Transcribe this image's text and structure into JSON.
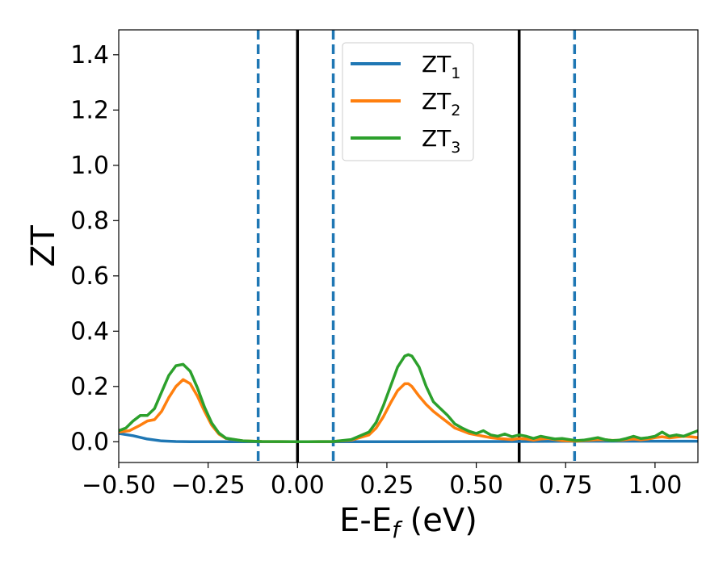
{
  "chart_data": {
    "type": "line",
    "xlabel": "E-E",
    "xlabel_sub": "f",
    "xlabel_unit": " (eV)",
    "ylabel": "ZT",
    "xlim": [
      -0.5,
      1.12
    ],
    "ylim": [
      -0.075,
      1.49
    ],
    "xticks": [
      -0.5,
      -0.25,
      0.0,
      0.25,
      0.5,
      0.75,
      1.0
    ],
    "xtick_labels": [
      "−0.50",
      "−0.25",
      "0.00",
      "0.25",
      "0.50",
      "0.75",
      "1.00"
    ],
    "yticks": [
      0.0,
      0.2,
      0.4,
      0.6,
      0.8,
      1.0,
      1.2,
      1.4
    ],
    "ytick_labels": [
      "0.0",
      "0.2",
      "0.4",
      "0.6",
      "0.8",
      "1.0",
      "1.2",
      "1.4"
    ],
    "grid": false,
    "legend_position": "top-center",
    "vlines_solid": [
      0.0,
      0.62
    ],
    "vlines_dashed": [
      -0.11,
      0.1,
      0.775
    ],
    "vline_solid_color": "#000000",
    "vline_dashed_color": "#1f77b4",
    "series": [
      {
        "name": "ZT",
        "name_sub": "1",
        "color": "#1f77b4",
        "x": [
          -0.5,
          -0.46,
          -0.42,
          -0.38,
          -0.34,
          -0.3,
          0.0,
          0.3,
          0.6,
          0.8,
          1.0,
          1.12
        ],
        "y": [
          0.03,
          0.022,
          0.01,
          0.003,
          0.001,
          0.0,
          0.0,
          0.0,
          0.001,
          0.002,
          0.002,
          0.002
        ]
      },
      {
        "name": "ZT",
        "name_sub": "2",
        "color": "#ff7f0e",
        "x": [
          -0.5,
          -0.47,
          -0.44,
          -0.42,
          -0.4,
          -0.38,
          -0.36,
          -0.34,
          -0.32,
          -0.3,
          -0.28,
          -0.26,
          -0.24,
          -0.22,
          -0.2,
          -0.15,
          -0.1,
          0.0,
          0.1,
          0.15,
          0.2,
          0.22,
          0.24,
          0.26,
          0.28,
          0.3,
          0.31,
          0.32,
          0.34,
          0.36,
          0.38,
          0.4,
          0.42,
          0.44,
          0.46,
          0.48,
          0.5,
          0.52,
          0.54,
          0.56,
          0.58,
          0.6,
          0.62,
          0.64,
          0.66,
          0.68,
          0.7,
          0.72,
          0.74,
          0.76,
          0.78,
          0.8,
          0.82,
          0.84,
          0.86,
          0.88,
          0.9,
          0.92,
          0.94,
          0.96,
          0.98,
          1.0,
          1.02,
          1.04,
          1.06,
          1.08,
          1.1,
          1.12
        ],
        "y": [
          0.035,
          0.04,
          0.06,
          0.075,
          0.08,
          0.11,
          0.16,
          0.2,
          0.225,
          0.21,
          0.165,
          0.11,
          0.06,
          0.028,
          0.012,
          0.003,
          0.001,
          0.0,
          0.001,
          0.006,
          0.025,
          0.05,
          0.09,
          0.14,
          0.185,
          0.21,
          0.21,
          0.2,
          0.165,
          0.135,
          0.11,
          0.09,
          0.07,
          0.05,
          0.04,
          0.03,
          0.025,
          0.02,
          0.015,
          0.012,
          0.01,
          0.008,
          0.012,
          0.01,
          0.006,
          0.01,
          0.012,
          0.008,
          0.004,
          0.003,
          0.002,
          0.004,
          0.006,
          0.008,
          0.007,
          0.005,
          0.005,
          0.008,
          0.01,
          0.007,
          0.01,
          0.015,
          0.018,
          0.014,
          0.017,
          0.02,
          0.018,
          0.015
        ]
      },
      {
        "name": "ZT",
        "name_sub": "3",
        "color": "#2ca02c",
        "x": [
          -0.5,
          -0.48,
          -0.46,
          -0.44,
          -0.42,
          -0.4,
          -0.38,
          -0.36,
          -0.34,
          -0.32,
          -0.3,
          -0.28,
          -0.26,
          -0.24,
          -0.22,
          -0.2,
          -0.15,
          -0.1,
          0.0,
          0.1,
          0.15,
          0.2,
          0.22,
          0.24,
          0.26,
          0.28,
          0.3,
          0.31,
          0.32,
          0.34,
          0.36,
          0.38,
          0.4,
          0.42,
          0.44,
          0.46,
          0.48,
          0.5,
          0.52,
          0.54,
          0.56,
          0.58,
          0.6,
          0.62,
          0.64,
          0.66,
          0.68,
          0.7,
          0.72,
          0.74,
          0.76,
          0.78,
          0.8,
          0.82,
          0.84,
          0.86,
          0.88,
          0.9,
          0.92,
          0.94,
          0.96,
          0.98,
          1.0,
          1.02,
          1.04,
          1.06,
          1.08,
          1.1,
          1.12
        ],
        "y": [
          0.04,
          0.05,
          0.075,
          0.095,
          0.095,
          0.12,
          0.18,
          0.24,
          0.275,
          0.28,
          0.255,
          0.195,
          0.125,
          0.068,
          0.032,
          0.013,
          0.003,
          0.001,
          0.0,
          0.001,
          0.008,
          0.035,
          0.07,
          0.13,
          0.2,
          0.27,
          0.31,
          0.315,
          0.31,
          0.27,
          0.2,
          0.145,
          0.12,
          0.095,
          0.065,
          0.05,
          0.038,
          0.03,
          0.04,
          0.025,
          0.02,
          0.028,
          0.018,
          0.025,
          0.02,
          0.012,
          0.02,
          0.015,
          0.01,
          0.012,
          0.008,
          0.004,
          0.006,
          0.01,
          0.015,
          0.008,
          0.004,
          0.006,
          0.012,
          0.02,
          0.012,
          0.015,
          0.02,
          0.035,
          0.02,
          0.025,
          0.02,
          0.03,
          0.04
        ]
      }
    ]
  }
}
